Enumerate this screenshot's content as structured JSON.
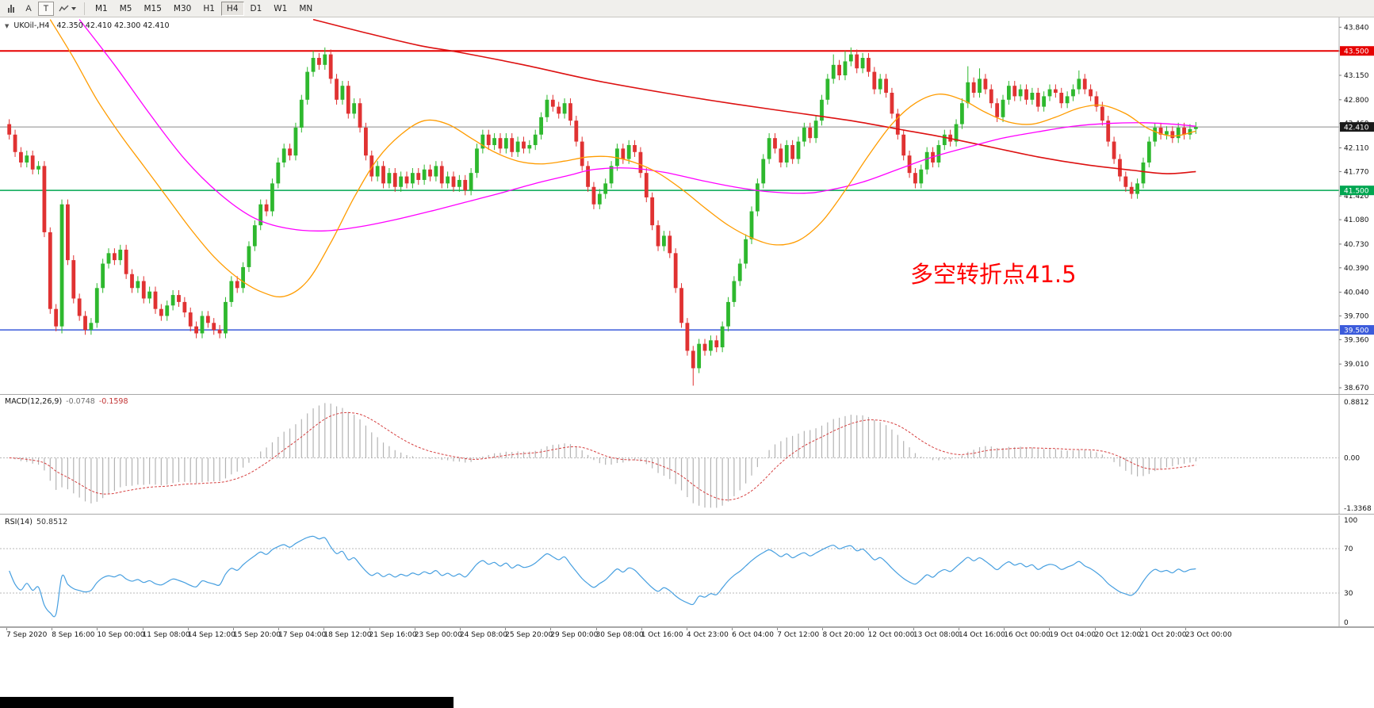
{
  "toolbar": {
    "tools": [
      {
        "label": "A"
      },
      {
        "label": "T"
      }
    ],
    "timeframes": [
      "M1",
      "M5",
      "M15",
      "M30",
      "H1",
      "H4",
      "D1",
      "W1",
      "MN"
    ],
    "active_timeframe": "H4"
  },
  "header": {
    "symbol_period": "UKOil-,H4",
    "ohlc": "42.350 42.410 42.300 42.410"
  },
  "annotation": {
    "text": "多空转折点41.5",
    "color": "#ff0000"
  },
  "chart_data": {
    "type": "candlestick",
    "symbol": "UKOil",
    "timeframe": "H4",
    "last_bar_ohlc": {
      "open": 42.35,
      "high": 42.41,
      "low": 42.3,
      "close": 42.41
    },
    "price_axis_ticks": [
      43.84,
      43.5,
      43.15,
      42.8,
      42.46,
      42.11,
      41.77,
      41.42,
      41.08,
      40.73,
      40.39,
      40.04,
      39.7,
      39.36,
      39.01,
      38.67
    ],
    "price_range": {
      "max": 43.98,
      "min": 38.58
    },
    "hlines": [
      {
        "price": 43.5,
        "label": "43.500",
        "color": "#e60000",
        "width": 2
      },
      {
        "price": 41.5,
        "label": "41.500",
        "color": "#00a651",
        "width": 1.5
      },
      {
        "price": 39.5,
        "label": "39.500",
        "color": "#3b5bdb",
        "width": 1.5
      }
    ],
    "current_price": {
      "price": 42.41,
      "label": "42.410",
      "badge_color": "#1a1a1a",
      "line_color": "#8a8a8a"
    },
    "candles": {
      "up_color": "#2eb82e",
      "down_color": "#e03232",
      "first_open": 42.45,
      "wick": 0.07,
      "closes": [
        42.3,
        42.05,
        41.9,
        42.0,
        41.8,
        41.85,
        40.9,
        39.8,
        39.55,
        41.3,
        40.5,
        39.95,
        39.7,
        39.5,
        39.6,
        40.1,
        40.45,
        40.6,
        40.5,
        40.65,
        40.3,
        40.1,
        40.2,
        39.95,
        40.05,
        39.8,
        39.7,
        39.85,
        40.0,
        39.9,
        39.75,
        39.55,
        39.45,
        39.7,
        39.6,
        39.5,
        39.45,
        39.9,
        40.2,
        40.1,
        40.4,
        40.7,
        41.0,
        41.3,
        41.2,
        41.6,
        41.9,
        42.1,
        42.0,
        42.4,
        42.8,
        43.2,
        43.4,
        43.3,
        43.45,
        43.1,
        42.8,
        43.0,
        42.6,
        42.75,
        42.4,
        42.0,
        41.7,
        41.85,
        41.6,
        41.75,
        41.55,
        41.7,
        41.6,
        41.75,
        41.65,
        41.8,
        41.7,
        41.85,
        41.6,
        41.7,
        41.55,
        41.65,
        41.5,
        41.75,
        42.1,
        42.3,
        42.15,
        42.25,
        42.1,
        42.25,
        42.05,
        42.2,
        42.1,
        42.15,
        42.3,
        42.55,
        42.8,
        42.7,
        42.6,
        42.75,
        42.5,
        42.2,
        41.85,
        41.55,
        41.3,
        41.45,
        41.6,
        41.85,
        42.1,
        41.95,
        42.15,
        42.05,
        41.75,
        41.4,
        41.0,
        40.7,
        40.85,
        40.6,
        40.1,
        39.6,
        39.2,
        38.95,
        39.3,
        39.2,
        39.35,
        39.25,
        39.55,
        39.9,
        40.2,
        40.45,
        40.8,
        41.2,
        41.6,
        41.95,
        42.25,
        42.1,
        41.9,
        42.15,
        41.95,
        42.2,
        42.4,
        42.25,
        42.5,
        42.8,
        43.1,
        43.3,
        43.15,
        43.35,
        43.45,
        43.25,
        43.4,
        43.2,
        42.95,
        43.1,
        42.9,
        42.6,
        42.3,
        42.0,
        41.75,
        41.6,
        41.8,
        42.05,
        41.9,
        42.15,
        42.3,
        42.2,
        42.45,
        42.75,
        43.05,
        42.9,
        43.1,
        42.95,
        42.75,
        42.55,
        42.8,
        43.0,
        42.85,
        42.95,
        42.8,
        42.9,
        42.7,
        42.85,
        42.95,
        42.9,
        42.75,
        42.85,
        42.95,
        43.1,
        42.95,
        42.85,
        42.7,
        42.5,
        42.2,
        41.95,
        41.7,
        41.55,
        41.45,
        41.6,
        41.9,
        42.2,
        42.4,
        42.3,
        42.35,
        42.25,
        42.4,
        42.3,
        42.38,
        42.41
      ],
      "wick_overrides": {
        "9": {
          "low": 39.45
        },
        "52": {
          "high": 43.5
        },
        "54": {
          "high": 43.55
        },
        "117": {
          "low": 38.7
        },
        "141": {
          "high": 43.45
        },
        "143": {
          "high": 43.5
        },
        "144": {
          "high": 43.55
        },
        "164": {
          "high": 43.28
        },
        "166": {
          "high": 43.25
        },
        "183": {
          "high": 43.22
        }
      }
    },
    "moving_averages": [
      {
        "name": "ma-slow-red",
        "color": "#dd1111",
        "width": 1.6,
        "points": [
          [
            52,
            43.95
          ],
          [
            60,
            43.78
          ],
          [
            70,
            43.58
          ],
          [
            77,
            43.48
          ],
          [
            88,
            43.3
          ],
          [
            100,
            43.08
          ],
          [
            112,
            42.9
          ],
          [
            124,
            42.74
          ],
          [
            134,
            42.62
          ],
          [
            144,
            42.5
          ],
          [
            152,
            42.38
          ],
          [
            160,
            42.26
          ],
          [
            168,
            42.12
          ],
          [
            176,
            41.98
          ],
          [
            184,
            41.87
          ],
          [
            192,
            41.79
          ],
          [
            198,
            41.74
          ],
          [
            203,
            41.77
          ]
        ]
      },
      {
        "name": "ma-mid-magenta",
        "color": "#ff00ff",
        "width": 1.3,
        "points": [
          [
            12,
            43.95
          ],
          [
            18,
            43.3
          ],
          [
            24,
            42.6
          ],
          [
            30,
            41.95
          ],
          [
            36,
            41.45
          ],
          [
            42,
            41.1
          ],
          [
            48,
            40.95
          ],
          [
            54,
            40.92
          ],
          [
            60,
            40.98
          ],
          [
            66,
            41.08
          ],
          [
            72,
            41.2
          ],
          [
            78,
            41.33
          ],
          [
            84,
            41.46
          ],
          [
            90,
            41.6
          ],
          [
            96,
            41.72
          ],
          [
            100,
            41.8
          ],
          [
            106,
            41.82
          ],
          [
            112,
            41.76
          ],
          [
            118,
            41.65
          ],
          [
            124,
            41.55
          ],
          [
            130,
            41.48
          ],
          [
            136,
            41.46
          ],
          [
            140,
            41.5
          ],
          [
            146,
            41.62
          ],
          [
            152,
            41.8
          ],
          [
            158,
            41.98
          ],
          [
            164,
            42.12
          ],
          [
            170,
            42.25
          ],
          [
            176,
            42.34
          ],
          [
            182,
            42.42
          ],
          [
            188,
            42.46
          ],
          [
            194,
            42.47
          ],
          [
            199,
            42.45
          ],
          [
            203,
            42.42
          ]
        ]
      },
      {
        "name": "ma-fast-orange",
        "color": "#ff9c00",
        "width": 1.3,
        "points": [
          [
            7,
            43.95
          ],
          [
            11,
            43.4
          ],
          [
            15,
            42.8
          ],
          [
            19,
            42.3
          ],
          [
            23,
            41.85
          ],
          [
            27,
            41.4
          ],
          [
            31,
            40.95
          ],
          [
            35,
            40.55
          ],
          [
            39,
            40.25
          ],
          [
            43,
            40.05
          ],
          [
            47,
            39.98
          ],
          [
            51,
            40.2
          ],
          [
            55,
            40.75
          ],
          [
            59,
            41.4
          ],
          [
            63,
            41.95
          ],
          [
            67,
            42.3
          ],
          [
            71,
            42.5
          ],
          [
            75,
            42.45
          ],
          [
            79,
            42.25
          ],
          [
            83,
            42.05
          ],
          [
            87,
            41.92
          ],
          [
            91,
            41.88
          ],
          [
            95,
            41.92
          ],
          [
            99,
            41.98
          ],
          [
            103,
            41.98
          ],
          [
            107,
            41.9
          ],
          [
            111,
            41.75
          ],
          [
            115,
            41.52
          ],
          [
            119,
            41.25
          ],
          [
            123,
            41.0
          ],
          [
            127,
            40.82
          ],
          [
            131,
            40.72
          ],
          [
            135,
            40.78
          ],
          [
            139,
            41.05
          ],
          [
            143,
            41.5
          ],
          [
            147,
            42.0
          ],
          [
            151,
            42.45
          ],
          [
            155,
            42.75
          ],
          [
            159,
            42.88
          ],
          [
            163,
            42.8
          ],
          [
            167,
            42.62
          ],
          [
            171,
            42.48
          ],
          [
            175,
            42.45
          ],
          [
            179,
            42.55
          ],
          [
            183,
            42.68
          ],
          [
            187,
            42.72
          ],
          [
            191,
            42.6
          ],
          [
            195,
            42.38
          ],
          [
            199,
            42.28
          ],
          [
            203,
            42.35
          ]
        ]
      }
    ],
    "macd": {
      "label": "MACD(12,26,9)",
      "value_main": "-0.0748",
      "value_signal": "-0.1598",
      "fast": 12,
      "slow": 26,
      "signal": 9,
      "axis_top_label": "0.8812",
      "axis_zero_label": "0.00",
      "axis_bottom_label": "-1.3368",
      "hist_color": "#b3b3b3",
      "signal_color": "#d64040"
    },
    "rsi": {
      "label": "RSI(14)",
      "value": "50.8512",
      "period": 14,
      "levels": [
        70,
        30
      ],
      "axis_labels": [
        "100",
        "70",
        "30",
        "0"
      ],
      "line_color": "#469fe0"
    },
    "time_axis": [
      "7 Sep 2020",
      "8 Sep 16:00",
      "10 Sep 00:00",
      "11 Sep 08:00",
      "14 Sep 12:00",
      "15 Sep 20:00",
      "17 Sep 04:00",
      "18 Sep 12:00",
      "21 Sep 16:00",
      "23 Sep 00:00",
      "24 Sep 08:00",
      "25 Sep 20:00",
      "29 Sep 00:00",
      "30 Sep 08:00",
      "1 Oct 16:00",
      "4 Oct 23:00",
      "6 Oct 04:00",
      "7 Oct 12:00",
      "8 Oct 20:00",
      "12 Oct 00:00",
      "13 Oct 08:00",
      "14 Oct 16:00",
      "16 Oct 00:00",
      "19 Oct 04:00",
      "20 Oct 12:00",
      "21 Oct 20:00",
      "23 Oct 00:00"
    ]
  }
}
